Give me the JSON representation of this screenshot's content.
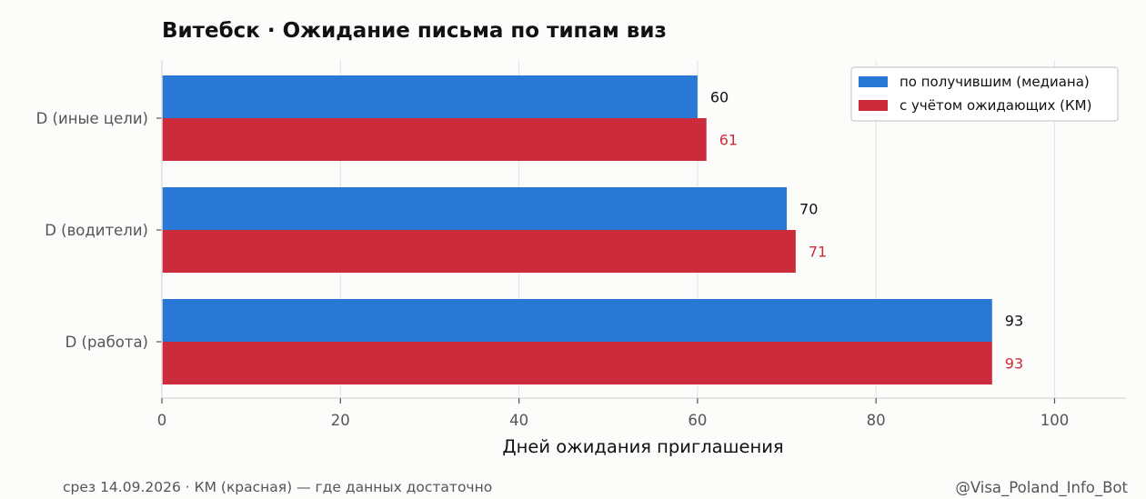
{
  "chart_data": {
    "type": "bar",
    "orientation": "horizontal",
    "title": "Витебск · Ожидание письма по типам виз",
    "xlabel": "Дней ожидания приглашения",
    "ylabel": "",
    "categories": [
      "D (иные цели)",
      "D (водители)",
      "D (работа)"
    ],
    "series": [
      {
        "name": "по получившим (медиана)",
        "values": [
          60,
          70,
          93
        ],
        "color": "#2a78d6",
        "label_color": "#111111"
      },
      {
        "name": "с учётом ожидающих (КМ)",
        "values": [
          61,
          71,
          93
        ],
        "color": "#cc2b3b",
        "label_color": "#cc2b3b"
      }
    ],
    "xlim": [
      0,
      108
    ],
    "xticks": [
      0,
      20,
      40,
      60,
      80,
      100
    ],
    "grid": "vertical",
    "legend_position": "top-right"
  },
  "footer": {
    "left": "срез 14.09.2026 · КМ (красная) — где данных достаточно",
    "right": "@Visa_Poland_Info_Bot"
  }
}
